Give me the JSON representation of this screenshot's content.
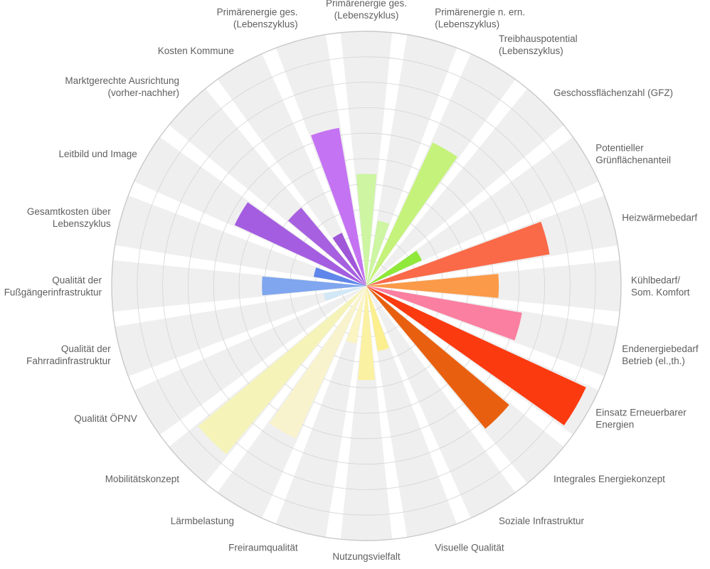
{
  "chart_data": {
    "type": "polar-bar",
    "title": "",
    "scale_max": 10,
    "grid_rings": 10,
    "sector_background": "#efefef",
    "gap_color": "#ffffff",
    "categories": [
      {
        "label": [
          "Primärenergie ges.",
          "(Lebenszyklus)"
        ],
        "value": 4.4,
        "color": "#cdf5a2"
      },
      {
        "label": [
          "Primärenergie n. ern.",
          "(Lebenszyklus)"
        ],
        "value": 2.6,
        "color": "#cdf5a2"
      },
      {
        "label": [
          "Treibhauspotential",
          "(Lebenszyklus)"
        ],
        "value": 6.2,
        "color": "#c5f27a"
      },
      {
        "label": [
          "Geschossflächenzahl (GFZ)"
        ],
        "value": 0,
        "color": "#b5ec55"
      },
      {
        "label": [
          "Potentieller",
          "Grünflächenanteil"
        ],
        "value": 2.4,
        "color": "#8fe83a"
      },
      {
        "label": [
          "Heizwärmebedarf"
        ],
        "value": 7.3,
        "color": "#fa6a48"
      },
      {
        "label": [
          "Kühlbedarf/",
          "Som. Komfort"
        ],
        "value": 5.2,
        "color": "#fb9a48"
      },
      {
        "label": [
          "Endenergiebedarf",
          "Betrieb (el.,th.)"
        ],
        "value": 6.2,
        "color": "#fa7fa0"
      },
      {
        "label": [
          "Einsatz Erneuerbarer",
          "Energien"
        ],
        "value": 9.5,
        "color": "#fb3a10"
      },
      {
        "label": [
          "Integrales Energiekonzept"
        ],
        "value": 7.3,
        "color": "#e8600f"
      },
      {
        "label": [
          "Soziale Infrastruktur"
        ],
        "value": 0,
        "color": "#fbef8f"
      },
      {
        "label": [
          "Visuelle Qualität"
        ],
        "value": 2.6,
        "color": "#fbef8f"
      },
      {
        "label": [
          "Nutzungsvielfalt"
        ],
        "value": 3.7,
        "color": "#fbf1a2"
      },
      {
        "label": [
          "Freiraumqualität"
        ],
        "value": 2.3,
        "color": "#fbf4c3"
      },
      {
        "label": [
          "Lärmbelastung"
        ],
        "value": 6.6,
        "color": "#f8f3cc"
      },
      {
        "label": [
          "Mobilitätskonzept"
        ],
        "value": 8.6,
        "color": "#f5f3b8"
      },
      {
        "label": [
          "Qualität ÖPNV"
        ],
        "value": 0,
        "color": "#eaf3f8"
      },
      {
        "label": [
          "Qualität der",
          "Fahrradinfrastruktur"
        ],
        "value": 1.7,
        "color": "#d3e8f6"
      },
      {
        "label": [
          "Qualität der",
          "Fußgängerinfrastruktur"
        ],
        "value": 4.1,
        "color": "#7fa6ee"
      },
      {
        "label": [
          "Gesamtkosten über",
          "Lebenszyklus"
        ],
        "value": 2.1,
        "color": "#5f86ea"
      },
      {
        "label": [
          "Leitbild und Image"
        ],
        "value": 5.7,
        "color": "#a45de0"
      },
      {
        "label": [
          "Marktgerechte Ausrichtung",
          "(vorher-nachher)"
        ],
        "value": 4.0,
        "color": "#a760e0"
      },
      {
        "label": [
          "Kosten Kommune"
        ],
        "value": 2.3,
        "color": "#a056d8"
      },
      {
        "label": [
          "Primärenergie ges.",
          "(Lebenszyklus)"
        ],
        "value": 6.3,
        "color": "#c473f2"
      }
    ]
  }
}
